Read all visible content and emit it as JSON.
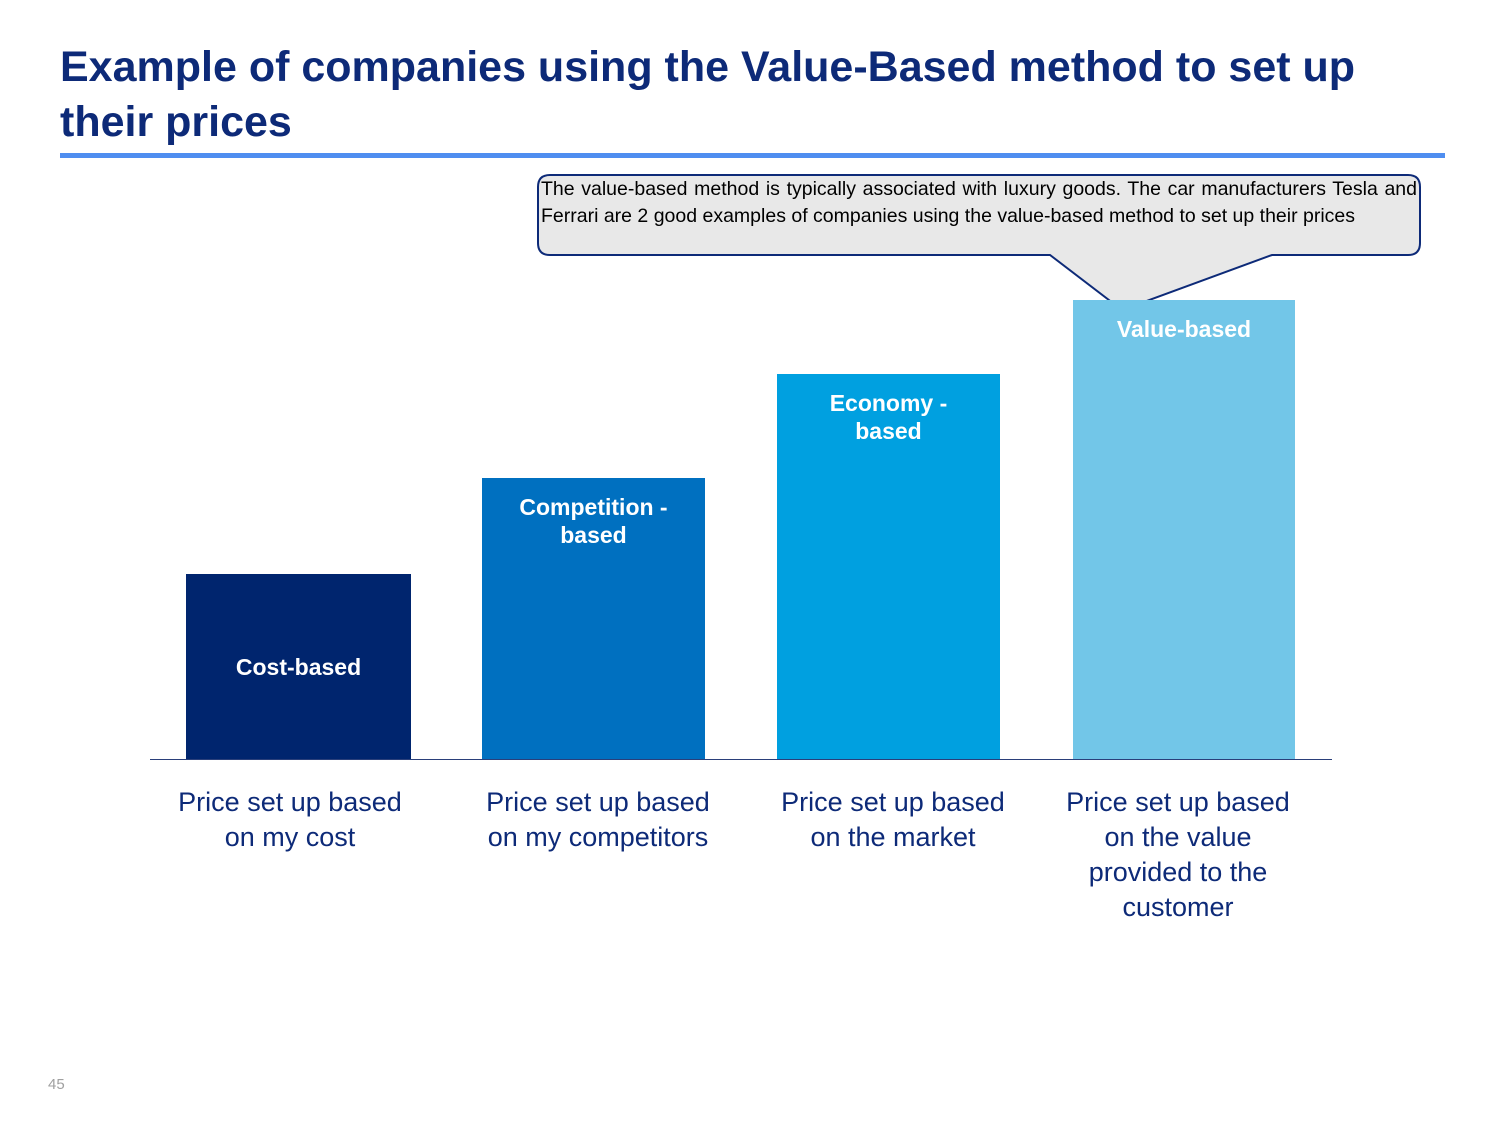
{
  "title": "Example of companies using the Value-Based method to set up their prices",
  "callout": {
    "text": "The value-based method is typically associated with luxury goods. The car manufacturers Tesla and Ferrari are 2 good examples of companies using the value-based method to set up their prices"
  },
  "columns": [
    {
      "bar_label": "Cost-based",
      "description": "Price set up based on my cost",
      "color": "#00256e"
    },
    {
      "bar_label": "Competition - based",
      "description": "Price set up based on my competitors",
      "color": "#0070c0"
    },
    {
      "bar_label": "Economy - based",
      "description": "Price set up based on the market",
      "color": "#00a0e0"
    },
    {
      "bar_label": "Value-based",
      "description": "Price set up based on the value provided to the customer",
      "color": "#72c6e8"
    }
  ],
  "page_number": "45"
}
